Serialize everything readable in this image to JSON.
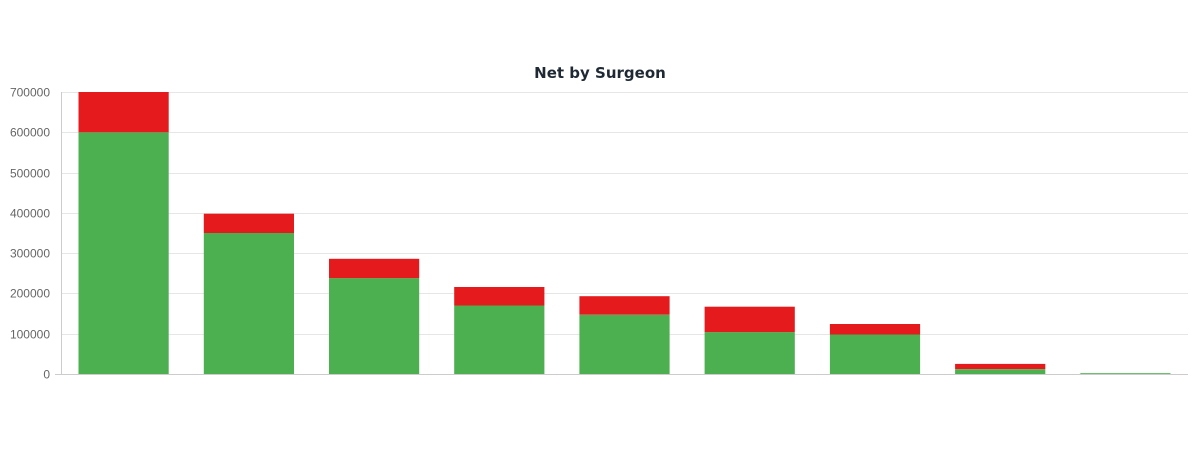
{
  "chart_data": {
    "type": "bar",
    "stacked": true,
    "title": "Net by Surgeon",
    "categories": [
      "",
      "",
      "",
      "",
      "",
      "",
      "",
      "",
      ""
    ],
    "series": [
      {
        "color": "#4caf50",
        "values": [
          600000,
          350000,
          238000,
          170000,
          147000,
          104000,
          98000,
          12000,
          2000
        ]
      },
      {
        "color": "#e41a1c",
        "values": [
          100000,
          48000,
          48000,
          46000,
          46000,
          63000,
          26000,
          13000,
          0
        ]
      }
    ],
    "ylim": [
      0,
      700000
    ],
    "yticks": [
      0,
      100000,
      200000,
      300000,
      400000,
      500000,
      600000,
      700000
    ],
    "grid": true,
    "legend": "none"
  }
}
